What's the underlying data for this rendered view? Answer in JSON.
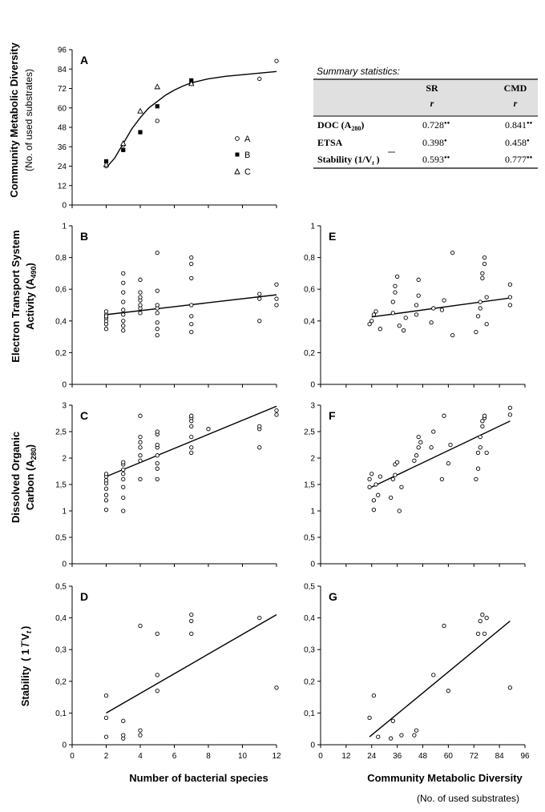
{
  "figure": {
    "xlabel_species": "Number of bacterial species",
    "xlabel_cmd": "Community Metabolic Diversity",
    "xlabel_cmd_sub": "(No. of used substrates)",
    "ylabel_cmd": "Community Metabolic Diversity",
    "ylabel_cmd_sub": "(No. of used substrates)",
    "ylabel_etsa_1": "Electron Transport System",
    "ylabel_etsa_2": "Activity (A",
    "ylabel_etsa_sub": "490",
    "ylabel_etsa_close": ")",
    "ylabel_doc_1": "Dissolved Organic",
    "ylabel_doc_2": "Carbon (A",
    "ylabel_doc_sub": "280",
    "ylabel_doc_close": ")",
    "ylabel_stab": "Stability",
    "ylabel_stab_formula": "( 1 / V",
    "ylabel_stab_sub": "t",
    "ylabel_stab_close": ")",
    "legend": {
      "a": "A",
      "b": "B",
      "c": "C"
    }
  },
  "summary": {
    "caption": "Summary statistics:",
    "col1": "SR",
    "col2": "CMD",
    "sub1": "r",
    "sub2": "r",
    "rows": [
      {
        "label": "DOC (A",
        "label_sub": "280",
        "label_close": ")",
        "sr": "0.728",
        "sr_sig": "●●",
        "cmd": "0.841",
        "cmd_sig": "●●"
      },
      {
        "label": "ETSA",
        "label_sub": "",
        "label_close": "",
        "sr": "0.398",
        "sr_sig": "●",
        "cmd": "0.458",
        "cmd_sig": "●"
      },
      {
        "label": "Stability (1/V",
        "label_sub": "t",
        "label_close": " )",
        "sr": "0.593",
        "sr_sig": "●●",
        "cmd": "0.777",
        "cmd_sig": "●●"
      }
    ]
  },
  "chart_data": [
    {
      "id": "A",
      "type": "scatter",
      "title": "A",
      "xlim": [
        0,
        12
      ],
      "ylim": [
        0,
        96
      ],
      "xticks": [],
      "xtick_labels": [],
      "yticks": [
        0,
        12,
        24,
        36,
        48,
        60,
        72,
        84,
        96
      ],
      "ytick_labels": [
        "0",
        "12",
        "24",
        "36",
        "48",
        "60",
        "72",
        "84",
        "96"
      ],
      "series": [
        {
          "name": "A",
          "marker": "circle",
          "x": [
            2,
            3,
            4,
            5,
            7,
            11,
            12
          ],
          "y": [
            24,
            37,
            45,
            52,
            75,
            78,
            89
          ]
        },
        {
          "name": "B",
          "marker": "square",
          "x": [
            2,
            3,
            4,
            5,
            7
          ],
          "y": [
            27,
            34,
            45,
            61,
            77
          ]
        },
        {
          "name": "C",
          "marker": "triangle",
          "x": [
            2,
            3,
            4,
            5,
            7
          ],
          "y": [
            25,
            38,
            58,
            73,
            75
          ]
        }
      ],
      "curve": {
        "x": [
          2,
          2.5,
          3,
          3.5,
          4,
          4.5,
          5,
          5.5,
          6,
          6.5,
          7,
          8,
          9,
          10,
          11,
          12
        ],
        "y": [
          23,
          29,
          38,
          47,
          54,
          60,
          64,
          68,
          71,
          73.5,
          75.5,
          78,
          79.5,
          80.5,
          81.5,
          82.5
        ]
      }
    },
    {
      "id": "B",
      "type": "scatter",
      "title": "B",
      "xlim": [
        0,
        12
      ],
      "ylim": [
        0,
        1
      ],
      "xticks": [],
      "xtick_labels": [],
      "yticks": [
        0,
        0.2,
        0.4,
        0.6,
        0.8,
        1
      ],
      "ytick_labels": [
        "0",
        "0,2",
        "0,4",
        "0,6",
        "0,8",
        "1"
      ],
      "series": [
        {
          "name": "ETSA",
          "marker": "circle",
          "x": [
            2,
            2,
            2,
            2,
            2,
            2,
            2,
            3,
            3,
            3,
            3,
            3,
            3,
            3,
            3,
            3,
            4,
            4,
            4,
            4,
            4,
            4,
            4,
            5,
            5,
            5,
            5,
            5,
            5,
            5,
            5,
            7,
            7,
            7,
            7,
            7,
            7,
            7,
            11,
            11,
            11,
            12,
            12,
            12
          ],
          "y": [
            0.35,
            0.38,
            0.4,
            0.42,
            0.44,
            0.46,
            0.43,
            0.34,
            0.37,
            0.4,
            0.44,
            0.47,
            0.52,
            0.58,
            0.64,
            0.7,
            0.45,
            0.48,
            0.5,
            0.53,
            0.55,
            0.58,
            0.66,
            0.31,
            0.35,
            0.39,
            0.45,
            0.48,
            0.5,
            0.59,
            0.83,
            0.33,
            0.38,
            0.43,
            0.5,
            0.67,
            0.76,
            0.8,
            0.4,
            0.54,
            0.57,
            0.5,
            0.54,
            0.63
          ]
        }
      ],
      "line": {
        "x": [
          2,
          12
        ],
        "y": [
          0.44,
          0.565
        ]
      }
    },
    {
      "id": "C",
      "type": "scatter",
      "title": "C",
      "xlim": [
        0,
        12
      ],
      "ylim": [
        0,
        3
      ],
      "xticks": [],
      "xtick_labels": [],
      "yticks": [
        0,
        0.5,
        1,
        1.5,
        2,
        2.5,
        3
      ],
      "ytick_labels": [
        "0",
        "0,5",
        "1",
        "1,5",
        "2",
        "2,5",
        "3"
      ],
      "series": [
        {
          "name": "DOC",
          "marker": "circle",
          "x": [
            2,
            2,
            2,
            2,
            2,
            2,
            2,
            2,
            3,
            3,
            3,
            3,
            3,
            3,
            3,
            3,
            4,
            4,
            4,
            4,
            4,
            4,
            4,
            5,
            5,
            5,
            5,
            5,
            5,
            5,
            5,
            7,
            7,
            7,
            7,
            7,
            7,
            7,
            8,
            11,
            11,
            11,
            12,
            12
          ],
          "y": [
            1.02,
            1.2,
            1.3,
            1.42,
            1.52,
            1.58,
            1.65,
            1.7,
            1.0,
            1.25,
            1.45,
            1.6,
            1.7,
            1.78,
            1.88,
            1.92,
            1.6,
            1.95,
            2.05,
            2.2,
            2.3,
            2.4,
            2.8,
            1.6,
            1.8,
            1.9,
            2.05,
            2.2,
            2.25,
            2.45,
            2.5,
            2.1,
            2.2,
            2.4,
            2.6,
            2.7,
            2.76,
            2.8,
            2.55,
            2.2,
            2.55,
            2.6,
            2.82,
            2.9
          ]
        }
      ],
      "line": {
        "x": [
          2,
          12
        ],
        "y": [
          1.65,
          2.98
        ]
      }
    },
    {
      "id": "D",
      "type": "scatter",
      "title": "D",
      "xlim": [
        0,
        12
      ],
      "ylim": [
        0,
        0.5
      ],
      "xticks": [
        0,
        2,
        4,
        6,
        8,
        10,
        12
      ],
      "xtick_labels": [
        "0",
        "2",
        "4",
        "6",
        "8",
        "10",
        "12"
      ],
      "yticks": [
        0,
        0.1,
        0.2,
        0.3,
        0.4,
        0.5
      ],
      "ytick_labels": [
        "0",
        "0,1",
        "0,2",
        "0,3",
        "0,4",
        "0,5"
      ],
      "series": [
        {
          "name": "Stability",
          "marker": "circle",
          "x": [
            2,
            2,
            2,
            3,
            3,
            3,
            4,
            4,
            4,
            5,
            5,
            5,
            7,
            7,
            7,
            11,
            12
          ],
          "y": [
            0.025,
            0.085,
            0.155,
            0.02,
            0.03,
            0.075,
            0.03,
            0.045,
            0.375,
            0.17,
            0.22,
            0.35,
            0.35,
            0.39,
            0.41,
            0.4,
            0.18
          ]
        }
      ],
      "line": {
        "x": [
          2,
          12
        ],
        "y": [
          0.1,
          0.41
        ]
      }
    },
    {
      "id": "E",
      "type": "scatter",
      "title": "E",
      "xlim": [
        0,
        96
      ],
      "ylim": [
        0,
        1
      ],
      "xticks": [],
      "xtick_labels": [],
      "yticks": [
        0,
        0.2,
        0.4,
        0.6,
        0.8,
        1
      ],
      "ytick_labels": [
        "0",
        "0,2",
        "0,4",
        "0,6",
        "0,8",
        "1"
      ],
      "series": [
        {
          "name": "ETSA",
          "marker": "circle",
          "x": [
            23,
            24,
            25,
            26,
            28,
            34,
            34,
            35,
            35,
            36,
            37,
            39,
            40,
            45,
            45,
            46,
            46,
            52,
            53,
            57,
            58,
            62,
            62,
            73,
            74,
            75,
            75,
            76,
            76,
            77,
            77,
            78,
            78,
            89,
            89,
            89
          ],
          "y": [
            0.38,
            0.4,
            0.44,
            0.46,
            0.35,
            0.45,
            0.52,
            0.58,
            0.62,
            0.68,
            0.37,
            0.34,
            0.42,
            0.44,
            0.5,
            0.56,
            0.66,
            0.39,
            0.48,
            0.47,
            0.53,
            0.31,
            0.83,
            0.33,
            0.43,
            0.48,
            0.52,
            0.67,
            0.7,
            0.76,
            0.8,
            0.38,
            0.55,
            0.5,
            0.55,
            0.63
          ]
        }
      ],
      "line": {
        "x": [
          24,
          89
        ],
        "y": [
          0.425,
          0.545
        ]
      }
    },
    {
      "id": "F",
      "type": "scatter",
      "title": "F",
      "xlim": [
        0,
        96
      ],
      "ylim": [
        0,
        3
      ],
      "xticks": [],
      "xtick_labels": [],
      "yticks": [
        0,
        0.5,
        1,
        1.5,
        2,
        2.5,
        3
      ],
      "ytick_labels": [
        "0",
        "0,5",
        "1",
        "1,5",
        "2",
        "2,5",
        "3"
      ],
      "series": [
        {
          "name": "DOC",
          "marker": "circle",
          "x": [
            23,
            23,
            24,
            25,
            25,
            26,
            27,
            28,
            33,
            34,
            35,
            35,
            36,
            37,
            38,
            44,
            45,
            46,
            46,
            47,
            52,
            53,
            57,
            58,
            60,
            61,
            73,
            74,
            74,
            75,
            75,
            76,
            76,
            77,
            77,
            78,
            89,
            89
          ],
          "y": [
            1.45,
            1.6,
            1.7,
            1.02,
            1.2,
            1.5,
            1.3,
            1.65,
            1.25,
            1.6,
            1.68,
            1.88,
            1.92,
            1.0,
            1.45,
            1.95,
            2.05,
            2.2,
            2.4,
            2.3,
            2.2,
            2.5,
            1.6,
            2.8,
            1.9,
            2.25,
            1.6,
            1.8,
            2.1,
            2.4,
            2.2,
            2.6,
            2.7,
            2.76,
            2.8,
            2.1,
            2.82,
            2.95
          ]
        }
      ],
      "line": {
        "x": [
          24,
          89
        ],
        "y": [
          1.45,
          2.7
        ]
      }
    },
    {
      "id": "G",
      "type": "scatter",
      "title": "G",
      "xlim": [
        0,
        96
      ],
      "ylim": [
        0,
        0.5
      ],
      "xticks": [
        0,
        12,
        24,
        36,
        48,
        60,
        72,
        84,
        96
      ],
      "xtick_labels": [
        "0",
        "12",
        "24",
        "36",
        "48",
        "60",
        "72",
        "84",
        "96"
      ],
      "yticks": [
        0,
        0.1,
        0.2,
        0.3,
        0.4,
        0.5
      ],
      "ytick_labels": [
        "0",
        "0,1",
        "0,2",
        "0,3",
        "0,4",
        "0,5"
      ],
      "series": [
        {
          "name": "Stability",
          "marker": "circle",
          "x": [
            23,
            25,
            27,
            34,
            38,
            45,
            33,
            44,
            58,
            53,
            60,
            74,
            75,
            76,
            78,
            77,
            89
          ],
          "y": [
            0.085,
            0.155,
            0.025,
            0.075,
            0.03,
            0.045,
            0.02,
            0.03,
            0.375,
            0.22,
            0.17,
            0.35,
            0.39,
            0.41,
            0.4,
            0.35,
            0.18
          ]
        }
      ],
      "line": {
        "x": [
          23,
          89
        ],
        "y": [
          0.025,
          0.39
        ]
      }
    }
  ]
}
